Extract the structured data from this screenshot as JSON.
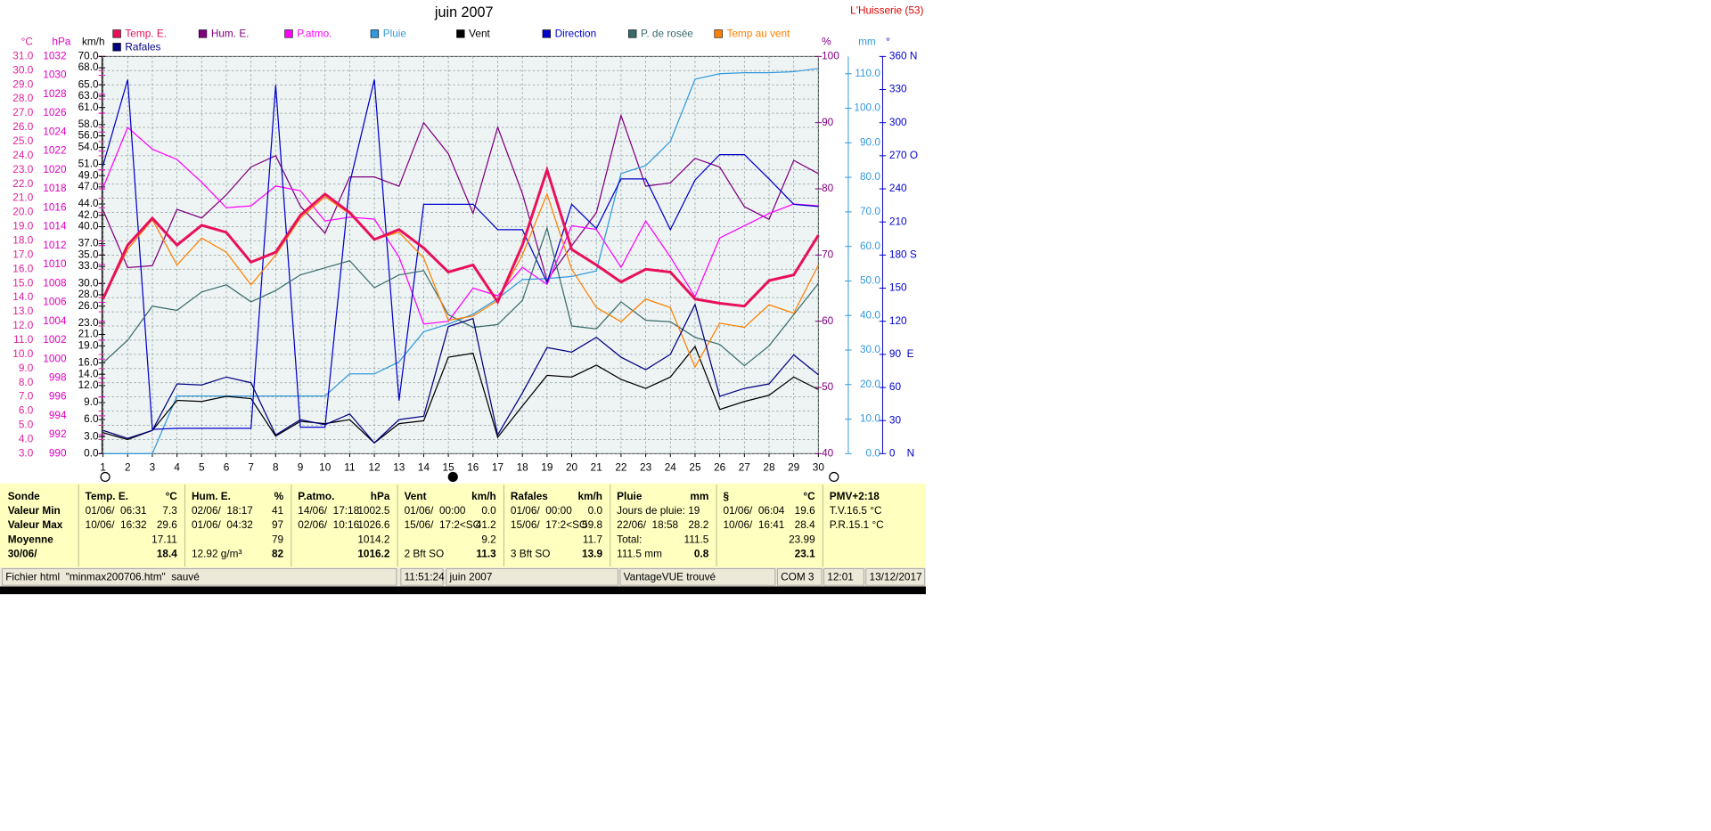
{
  "chart_data": {
    "type": "line",
    "title": "juin 2007",
    "annotations": [
      "L'Huisserie (53)"
    ],
    "x": [
      1,
      2,
      3,
      4,
      5,
      6,
      7,
      8,
      9,
      10,
      11,
      12,
      13,
      14,
      15,
      16,
      17,
      18,
      19,
      20,
      21,
      22,
      23,
      24,
      25,
      26,
      27,
      28,
      29,
      30
    ],
    "xlim": [
      1,
      30
    ],
    "xticks": [
      1,
      2,
      3,
      4,
      5,
      6,
      7,
      8,
      9,
      10,
      11,
      12,
      13,
      14,
      15,
      16,
      17,
      18,
      19,
      20,
      21,
      22,
      23,
      24,
      25,
      26,
      27,
      28,
      29,
      30
    ],
    "grid": true,
    "legend": "top",
    "y_axes": [
      {
        "label": "°C",
        "color": "#e0209a",
        "lim": [
          3,
          31
        ],
        "ticks": [
          {
            "value": 3,
            "label": "3.0"
          },
          {
            "value": 4,
            "label": "4.0"
          },
          {
            "value": 5,
            "label": "5.0"
          },
          {
            "value": 6,
            "label": "6.0"
          },
          {
            "value": 7,
            "label": "7.0"
          },
          {
            "value": 8,
            "label": "8.0"
          },
          {
            "value": 9,
            "label": "9.0"
          },
          {
            "value": 10,
            "label": "10.0"
          },
          {
            "value": 11,
            "label": "11.0"
          },
          {
            "value": 12,
            "label": "12.0"
          },
          {
            "value": 13,
            "label": "13.0"
          },
          {
            "value": 14,
            "label": "14.0"
          },
          {
            "value": 15,
            "label": "15.0"
          },
          {
            "value": 16,
            "label": "16.0"
          },
          {
            "value": 17,
            "label": "17.0"
          },
          {
            "value": 18,
            "label": "18.0"
          },
          {
            "value": 19,
            "label": "19.0"
          },
          {
            "value": 20,
            "label": "20.0"
          },
          {
            "value": 21,
            "label": "21.0"
          },
          {
            "value": 22,
            "label": "22.0"
          },
          {
            "value": 23,
            "label": "23.0"
          },
          {
            "value": 24,
            "label": "24.0"
          },
          {
            "value": 25,
            "label": "25.0"
          },
          {
            "value": 26,
            "label": "26.0"
          },
          {
            "value": 27,
            "label": "27.0"
          },
          {
            "value": 28,
            "label": "28.0"
          },
          {
            "value": 29,
            "label": "29.0"
          },
          {
            "value": 30,
            "label": "30.0"
          },
          {
            "value": 31,
            "label": "31.0"
          }
        ]
      },
      {
        "label": "hPa",
        "color": "#e000c0",
        "lim": [
          990,
          1032
        ],
        "ticks": [
          990,
          992,
          994,
          996,
          998,
          1000,
          1002,
          1004,
          1006,
          1008,
          1010,
          1012,
          1014,
          1016,
          1018,
          1020,
          1022,
          1024,
          1026,
          1028,
          1030,
          1032
        ]
      },
      {
        "label": "km/h",
        "color": "#000000",
        "lim": [
          0,
          70
        ],
        "ticks": [
          {
            "value": 0,
            "label": "0.0"
          },
          {
            "value": 3,
            "label": "3.0"
          },
          {
            "value": 6,
            "label": "6.0"
          },
          {
            "value": 9,
            "label": "9.0"
          },
          {
            "value": 12,
            "label": "12.0"
          },
          {
            "value": 14,
            "label": "14.0"
          },
          {
            "value": 16,
            "label": "16.0"
          },
          {
            "value": 19,
            "label": "19.0"
          },
          {
            "value": 21,
            "label": "21.0"
          },
          {
            "value": 23,
            "label": "23.0"
          },
          {
            "value": 26,
            "label": "26.0"
          },
          {
            "value": 28,
            "label": "28.0"
          },
          {
            "value": 30,
            "label": "30.0"
          },
          {
            "value": 33,
            "label": "33.0"
          },
          {
            "value": 35,
            "label": "35.0"
          },
          {
            "value": 37,
            "label": "37.0"
          },
          {
            "value": 40,
            "label": "40.0"
          },
          {
            "value": 42,
            "label": "42.0"
          },
          {
            "value": 44,
            "label": "44.0"
          },
          {
            "value": 47,
            "label": "47.0"
          },
          {
            "value": 49,
            "label": "49.0"
          },
          {
            "value": 51,
            "label": "51.0"
          },
          {
            "value": 54,
            "label": "54.0"
          },
          {
            "value": 56,
            "label": "56.0"
          },
          {
            "value": 58,
            "label": "58.0"
          },
          {
            "value": 61,
            "label": "61.0"
          },
          {
            "value": 63,
            "label": "63.0"
          },
          {
            "value": 65,
            "label": "65.0"
          },
          {
            "value": 68,
            "label": "68.0"
          },
          {
            "value": 70,
            "label": "70.0"
          }
        ]
      },
      {
        "label": "%",
        "color": "#800080",
        "lim": [
          40,
          100
        ],
        "ticks": [
          40,
          50,
          60,
          70,
          80,
          90,
          100
        ]
      },
      {
        "label": "mm",
        "color": "#3399dd",
        "lim": [
          0,
          115
        ],
        "ticks": [
          {
            "value": 0,
            "label": "0.0"
          },
          {
            "value": 10,
            "label": "10.0"
          },
          {
            "value": 20,
            "label": "20.0"
          },
          {
            "value": 30,
            "label": "30.0"
          },
          {
            "value": 40,
            "label": "40.0"
          },
          {
            "value": 50,
            "label": "50.0"
          },
          {
            "value": 60,
            "label": "60.0"
          },
          {
            "value": 70,
            "label": "70.0"
          },
          {
            "value": 80,
            "label": "80.0"
          },
          {
            "value": 90,
            "label": "90.0"
          },
          {
            "value": 100,
            "label": "100.0"
          },
          {
            "value": 110,
            "label": "110.0"
          }
        ]
      },
      {
        "label": "°",
        "color": "#0000cc",
        "lim": [
          0,
          360
        ],
        "ticks": [
          {
            "value": 0,
            "label": "0    N"
          },
          30,
          60,
          {
            "value": 90,
            "label": "90  E"
          },
          120,
          150,
          {
            "value": 180,
            "label": "180 S"
          },
          210,
          240,
          {
            "value": 270,
            "label": "270 O"
          },
          300,
          330,
          {
            "value": 360,
            "label": "360 N"
          }
        ]
      }
    ],
    "series": [
      {
        "name": "Temp. E.",
        "color": "#e8105a",
        "axis": 0,
        "values": [
          13.9,
          17.7,
          19.6,
          17.7,
          19.1,
          18.6,
          16.5,
          17.2,
          19.8,
          21.3,
          20.0,
          18.1,
          18.8,
          17.5,
          15.8,
          16.3,
          13.7,
          17.7,
          23.0,
          17.4,
          16.3,
          15.1,
          16.0,
          15.8,
          13.9,
          13.6,
          13.4,
          15.2,
          15.6,
          18.4
        ]
      },
      {
        "name": "Hum. E.",
        "color": "#800080",
        "axis": 3,
        "values": [
          76.8,
          68.1,
          68.4,
          76.9,
          75.6,
          79.1,
          83.3,
          85.0,
          77.4,
          73.3,
          81.8,
          81.8,
          80.4,
          90.0,
          85.3,
          76.3,
          89.3,
          79.3,
          66.2,
          71.4,
          76.4,
          91.1,
          80.4,
          80.9,
          84.6,
          83.3,
          77.3,
          75.4,
          84.3,
          82.3
        ]
      },
      {
        "name": "P.atmo.",
        "color": "#ff00ff",
        "axis": 1,
        "values": [
          1018.1,
          1024.5,
          1022.2,
          1021.1,
          1018.7,
          1016.0,
          1016.2,
          1018.3,
          1017.8,
          1014.6,
          1015.0,
          1014.8,
          1010.8,
          1003.7,
          1004.0,
          1007.5,
          1006.7,
          1009.7,
          1007.9,
          1014.1,
          1013.7,
          1009.7,
          1014.6,
          1010.8,
          1006.6,
          1012.8,
          1014.1,
          1015.4,
          1016.4,
          1016.2
        ]
      },
      {
        "name": "Pluie",
        "color": "#3399dd",
        "axis": 4,
        "values": [
          0,
          0,
          0,
          16.7,
          16.7,
          16.7,
          16.7,
          16.7,
          16.7,
          16.7,
          23.1,
          23.1,
          26.6,
          35.3,
          37.5,
          40.4,
          44.9,
          50.4,
          50.7,
          51.3,
          52.9,
          81.1,
          83.4,
          90.4,
          108.4,
          110.0,
          110.3,
          110.3,
          110.6,
          111.5
        ]
      },
      {
        "name": "Vent",
        "color": "#000000",
        "axis": 2,
        "values": [
          3.7,
          2.5,
          4.1,
          9.4,
          9.2,
          10.1,
          9.7,
          3.1,
          5.7,
          5.3,
          6.0,
          1.9,
          5.3,
          5.8,
          17.0,
          17.7,
          2.9,
          8.4,
          13.8,
          13.5,
          15.6,
          13.1,
          11.5,
          13.5,
          18.9,
          7.8,
          9.2,
          10.3,
          13.5,
          11.3
        ]
      },
      {
        "name": "Direction",
        "color": "#0000cc",
        "axis": 5,
        "values": [
          261,
          339,
          22,
          23,
          23,
          23,
          23,
          334,
          24,
          24,
          245,
          339,
          48,
          226,
          226,
          226,
          203,
          203,
          155,
          226,
          204,
          249,
          249,
          203,
          248,
          271,
          271,
          249,
          226,
          224
        ]
      },
      {
        "name": "P. de rosée",
        "color": "#3a6b6b",
        "axis": 0,
        "values": [
          9.4,
          11.0,
          13.4,
          13.1,
          14.4,
          14.9,
          13.7,
          14.5,
          15.6,
          16.1,
          16.6,
          14.7,
          15.6,
          15.9,
          12.8,
          11.9,
          12.1,
          13.8,
          18.9,
          12.0,
          11.8,
          13.7,
          12.4,
          12.3,
          11.2,
          10.7,
          9.2,
          10.6,
          12.8,
          15.0
        ]
      },
      {
        "name": "Temp au vent",
        "color": "#ff8000",
        "axis": 0,
        "values": [
          13.9,
          17.4,
          19.5,
          16.3,
          18.2,
          17.2,
          14.9,
          17.0,
          19.6,
          21.1,
          19.9,
          18.1,
          18.6,
          16.8,
          12.4,
          12.7,
          13.8,
          17.0,
          21.3,
          16.0,
          13.3,
          12.3,
          13.9,
          13.3,
          9.1,
          12.2,
          11.9,
          13.5,
          12.9,
          16.3
        ]
      },
      {
        "name": "Rafales",
        "color": "#000080",
        "axis": 2,
        "values": [
          4.1,
          2.7,
          4.1,
          12.3,
          12.1,
          13.5,
          12.5,
          3.3,
          6.0,
          5.1,
          7.0,
          1.9,
          6.0,
          6.6,
          22.4,
          23.8,
          3.3,
          10.7,
          18.7,
          17.9,
          20.5,
          17.0,
          14.8,
          17.5,
          26.3,
          10.1,
          11.5,
          12.3,
          17.4,
          13.9
        ]
      }
    ]
  },
  "table": {
    "columns": [
      {
        "header": {
          "left": "Sonde"
        },
        "rows": [
          {
            "left": "Valeur Min"
          },
          {
            "left": "Valeur Max"
          },
          {
            "left": "Moyenne"
          },
          {
            "left": "30/06/"
          }
        ]
      },
      {
        "header": {
          "left": "Temp. E.",
          "right": "°C"
        },
        "rows": [
          {
            "left": "01/06/  06:31",
            "right": "7.3"
          },
          {
            "left": "10/06/  16:32",
            "right": "29.6"
          },
          {
            "right": "17.11"
          },
          {
            "right": "18.4"
          }
        ]
      },
      {
        "header": {
          "left": "Hum. E.",
          "right": "%"
        },
        "rows": [
          {
            "left": "02/06/  18:17",
            "right": "41"
          },
          {
            "left": "01/06/  04:32",
            "right": "97"
          },
          {
            "right": "79"
          },
          {
            "left": "12.92 g/m³",
            "right": "82"
          }
        ]
      },
      {
        "header": {
          "left": "P.atmo.",
          "right": "hPa"
        },
        "rows": [
          {
            "left": "14/06/  17:18",
            "right": "1002.5"
          },
          {
            "left": "02/06/  10:16",
            "right": "1026.6"
          },
          {
            "right": "1014.2"
          },
          {
            "right": "1016.2"
          }
        ]
      },
      {
        "header": {
          "left": "Vent",
          "right": "km/h"
        },
        "rows": [
          {
            "left": "01/06/  00:00",
            "right": "0.0"
          },
          {
            "left": "15/06/  17:2<SO",
            "right": "41.2"
          },
          {
            "right": "9.2"
          },
          {
            "left": "2 Bft SO",
            "right": "11.3"
          }
        ]
      },
      {
        "header": {
          "left": "Rafales",
          "right": "km/h"
        },
        "rows": [
          {
            "left": "01/06/  00:00",
            "right": "0.0"
          },
          {
            "left": "15/06/  17:2<SO",
            "right": "59.8"
          },
          {
            "right": "11.7"
          },
          {
            "left": "3 Bft SO",
            "right": "13.9"
          }
        ]
      },
      {
        "header": {
          "left": "Pluie",
          "right": "mm"
        },
        "rows": [
          {
            "left": "Jours de pluie: 19"
          },
          {
            "left": "22/06/  18:58",
            "right": "28.2"
          },
          {
            "left": "Total:",
            "right": "111.5"
          },
          {
            "left": "111.5 mm",
            "right": "0.8"
          }
        ]
      },
      {
        "header": {
          "left": "§",
          "right": "°C"
        },
        "rows": [
          {
            "left": "01/06/  06:04",
            "right": "19.6"
          },
          {
            "left": "10/06/  16:41",
            "right": "28.4"
          },
          {
            "right": "23.99"
          },
          {
            "right": "23.1"
          }
        ]
      },
      {
        "header": {
          "left": "PMV+2:18"
        },
        "rows": [
          {
            "left": "T.V.16.5 °C"
          },
          {
            "left": "P.R.15.1 °C"
          }
        ]
      }
    ]
  },
  "status_bar": [
    "Fichier html  \"minmax200706.htm\"  sauvé",
    "11:51:24",
    "juin 2007",
    "VantageVUE trouvé",
    "COM 3",
    "12:01",
    "13/12/2017"
  ]
}
